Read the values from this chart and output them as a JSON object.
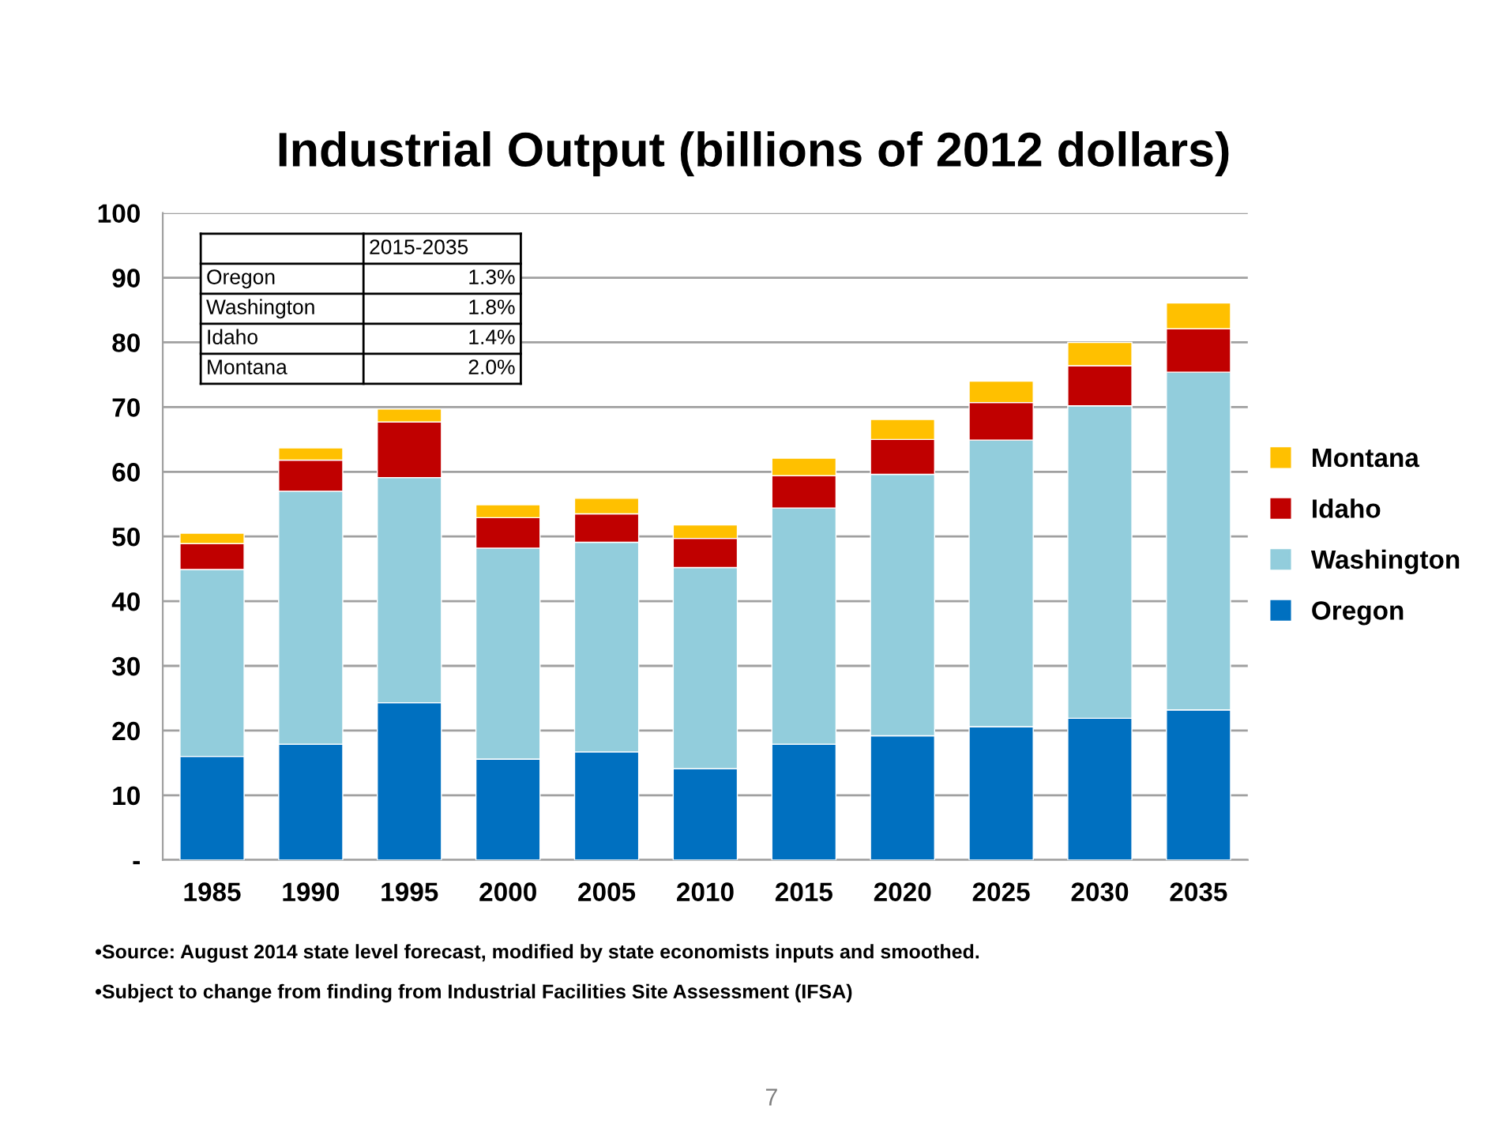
{
  "chart_data": {
    "type": "bar",
    "stacked": true,
    "title": "Industrial Output (billions of 2012 dollars)",
    "categories": [
      "1985",
      "1990",
      "1995",
      "2000",
      "2005",
      "2010",
      "2015",
      "2020",
      "2025",
      "2030",
      "2035"
    ],
    "series": [
      {
        "name": "Oregon",
        "color": "#0070c0",
        "values": [
          16.0,
          17.9,
          24.3,
          15.6,
          16.7,
          14.1,
          17.9,
          19.2,
          20.6,
          21.9,
          23.2
        ]
      },
      {
        "name": "Washington",
        "color": "#92cddc",
        "values": [
          28.9,
          39.1,
          34.8,
          32.6,
          32.4,
          31.1,
          36.5,
          40.4,
          44.3,
          48.3,
          52.2
        ]
      },
      {
        "name": "Idaho",
        "color": "#c00000",
        "values": [
          4.0,
          4.8,
          8.6,
          4.7,
          4.4,
          4.5,
          5.0,
          5.4,
          5.8,
          6.2,
          6.7
        ]
      },
      {
        "name": "Montana",
        "color": "#ffc000",
        "values": [
          1.6,
          1.9,
          2.0,
          2.0,
          2.4,
          2.1,
          2.7,
          3.1,
          3.3,
          3.6,
          4.0
        ]
      }
    ],
    "ylim": [
      0,
      100
    ],
    "yticks": [
      {
        "value": 0,
        "label": "-"
      },
      10,
      20,
      30,
      40,
      50,
      60,
      70,
      80,
      90,
      100
    ],
    "grid": "y",
    "legend": "right",
    "annotations": [
      "2015-2035",
      "Oregon",
      "1.3%",
      "Washington",
      "1.8%",
      "Idaho",
      "1.4%",
      "Montana",
      "2.0%",
      "•Source: August 2014 state level forecast, modified by state economists inputs and smoothed.",
      "•Subject to change from finding from Industrial Facilities Site Assessment (IFSA)",
      "7"
    ]
  }
}
